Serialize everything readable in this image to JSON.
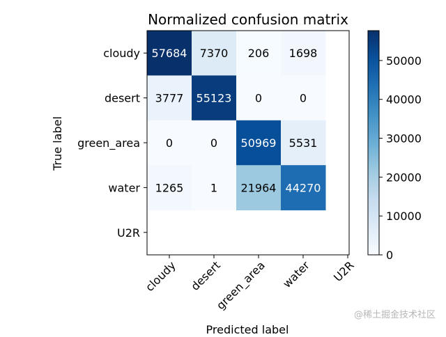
{
  "chart_data": {
    "type": "heatmap",
    "title": "Normalized confusion matrix",
    "xlabel": "Predicted label",
    "ylabel": "True label",
    "x_categories": [
      "cloudy",
      "desert",
      "green_area",
      "water",
      "U2R"
    ],
    "y_categories": [
      "cloudy",
      "desert",
      "green_area",
      "water",
      "U2R"
    ],
    "values": [
      [
        57684,
        7370,
        206,
        1698,
        null
      ],
      [
        3777,
        55123,
        0,
        0,
        null
      ],
      [
        0,
        0,
        50969,
        5531,
        null
      ],
      [
        1265,
        1,
        21964,
        44270,
        null
      ],
      [
        null,
        null,
        null,
        null,
        null
      ]
    ],
    "colorscale": "Blues",
    "color_range": [
      0,
      57684
    ],
    "colorbar_ticks": [
      0,
      10000,
      20000,
      30000,
      40000,
      50000
    ],
    "colorbar_tick_labels": [
      "0",
      "10000",
      "20000",
      "30000",
      "40000",
      "50000"
    ],
    "grid": false
  },
  "watermark": "@稀土掘金技术社区",
  "colors": {
    "low": "#f7fbff",
    "high": "#08306b",
    "text_dark": "#000000",
    "text_light": "#ffffff"
  }
}
